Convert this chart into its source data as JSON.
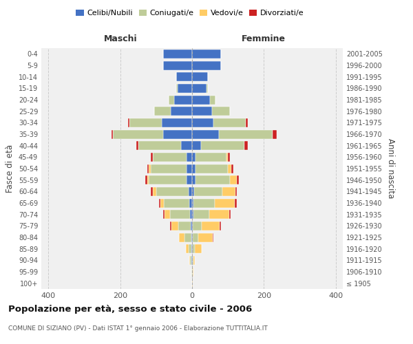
{
  "age_groups": [
    "100+",
    "95-99",
    "90-94",
    "85-89",
    "80-84",
    "75-79",
    "70-74",
    "65-69",
    "60-64",
    "55-59",
    "50-54",
    "45-49",
    "40-44",
    "35-39",
    "30-34",
    "25-29",
    "20-24",
    "15-19",
    "10-14",
    "5-9",
    "0-4"
  ],
  "birth_years": [
    "≤ 1905",
    "1906-1910",
    "1911-1915",
    "1916-1920",
    "1921-1925",
    "1926-1930",
    "1931-1935",
    "1936-1940",
    "1941-1945",
    "1946-1950",
    "1951-1955",
    "1956-1960",
    "1961-1965",
    "1966-1970",
    "1971-1975",
    "1976-1980",
    "1981-1985",
    "1986-1990",
    "1991-1995",
    "1996-2000",
    "2001-2005"
  ],
  "colors": {
    "celibi": "#4472C4",
    "coniugati": "#BFCC99",
    "vedovi": "#FFCC66",
    "divorziati": "#CC2222"
  },
  "males": {
    "celibi": [
      0,
      0,
      1,
      1,
      2,
      3,
      6,
      8,
      10,
      15,
      15,
      15,
      30,
      80,
      85,
      60,
      50,
      40,
      45,
      80,
      80
    ],
    "coniugati": [
      0,
      1,
      4,
      8,
      20,
      35,
      55,
      70,
      90,
      105,
      100,
      95,
      120,
      140,
      90,
      45,
      15,
      5,
      0,
      0,
      0
    ],
    "vedovi": [
      0,
      1,
      3,
      8,
      15,
      20,
      15,
      10,
      10,
      5,
      5,
      0,
      0,
      0,
      0,
      0,
      0,
      0,
      0,
      0,
      0
    ],
    "divorziati": [
      0,
      0,
      0,
      0,
      0,
      3,
      5,
      5,
      5,
      5,
      5,
      5,
      5,
      5,
      3,
      0,
      0,
      0,
      0,
      0,
      0
    ]
  },
  "females": {
    "celibi": [
      0,
      0,
      1,
      2,
      2,
      2,
      3,
      4,
      5,
      10,
      10,
      10,
      25,
      75,
      60,
      55,
      50,
      40,
      45,
      80,
      80
    ],
    "coniugati": [
      0,
      1,
      2,
      5,
      15,
      25,
      45,
      60,
      80,
      95,
      90,
      85,
      120,
      150,
      90,
      50,
      15,
      5,
      0,
      0,
      0
    ],
    "vedovi": [
      1,
      2,
      5,
      20,
      40,
      50,
      55,
      55,
      35,
      20,
      10,
      5,
      0,
      0,
      0,
      0,
      0,
      0,
      0,
      0,
      0
    ],
    "divorziati": [
      0,
      0,
      0,
      0,
      2,
      3,
      5,
      5,
      5,
      5,
      5,
      5,
      10,
      10,
      5,
      0,
      0,
      0,
      0,
      0,
      0
    ]
  },
  "title": "Popolazione per età, sesso e stato civile - 2006",
  "subtitle": "COMUNE DI SIZIANO (PV) - Dati ISTAT 1° gennaio 2006 - Elaborazione TUTTITALIA.IT",
  "ylabel_left": "Fasce di età",
  "ylabel_right": "Anni di nascita",
  "xlim": 420,
  "legend_labels": [
    "Celibi/Nubili",
    "Coniugati/e",
    "Vedovi/e",
    "Divorziati/e"
  ],
  "maschi_label": "Maschi",
  "femmine_label": "Femmine",
  "background_color": "#f0f0f0",
  "plot_background": "#ffffff"
}
